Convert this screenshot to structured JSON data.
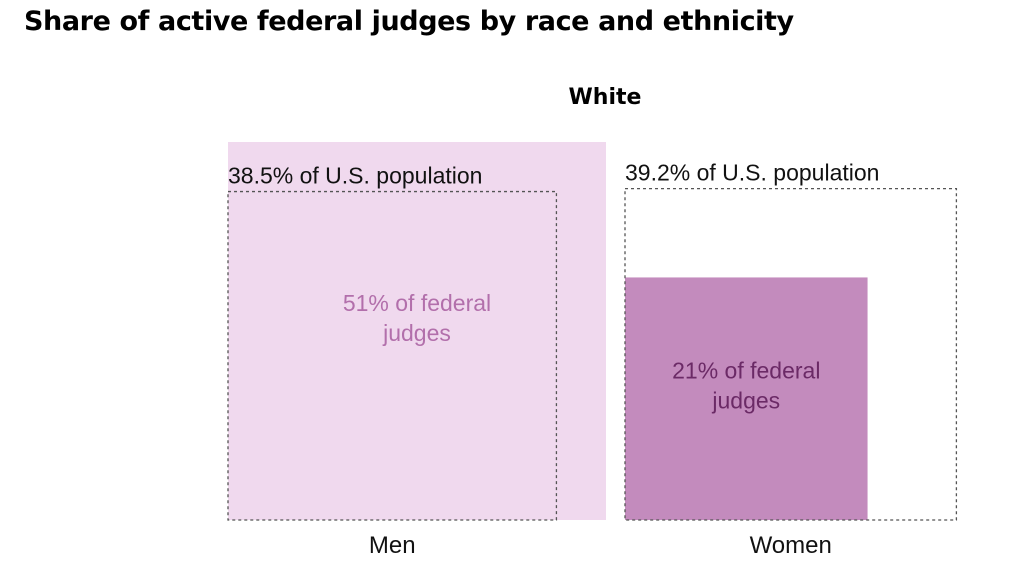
{
  "header": {
    "title": "Share of active federal judges by race and ethnicity",
    "subtitle": "White"
  },
  "colors": {
    "men_fill": "#f0d9ee",
    "women_fill": "#c38bbd",
    "men_label": "#b26fab",
    "women_label": "#6b2a66",
    "outline": "#555555",
    "text": "#111111"
  },
  "chart_data": {
    "type": "bar",
    "title": "Share of active federal judges by race and ethnicity",
    "subtitle": "White",
    "xlabel": "",
    "ylabel": "",
    "categories": [
      "Men",
      "Women"
    ],
    "series": [
      {
        "name": "federal judges",
        "values": [
          51,
          21
        ],
        "labels": [
          "51% of federal judges",
          "21% of federal judges"
        ]
      },
      {
        "name": "U.S. population",
        "values": [
          38.5,
          39.2
        ],
        "labels": [
          "38.5% of U.S. population",
          "39.2% of U.S. population"
        ]
      }
    ],
    "grid": false,
    "legend": "none"
  }
}
